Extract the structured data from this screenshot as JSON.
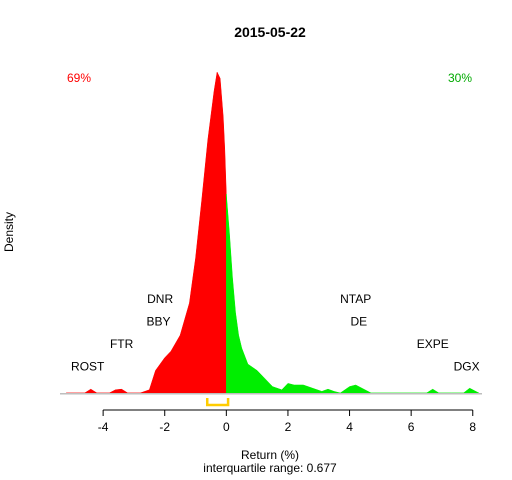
{
  "chart_data": {
    "type": "area",
    "title": "2015-05-22",
    "xlabel": "Return (%)",
    "ylabel": "Density",
    "subtitle": "interquartile range: 0.677",
    "xlim": [
      -5.4,
      8.3
    ],
    "ylim": [
      0,
      1.0
    ],
    "x_ticks": [
      -4,
      -2,
      0,
      2,
      4,
      6,
      8
    ],
    "pct_negative": "69%",
    "pct_positive": "30%",
    "colors": {
      "negative": "#ff0000",
      "positive": "#00ee00",
      "iqr": "#ffcc00",
      "axis": "#000000",
      "baseline": "#bebebe"
    },
    "iqr_range": [
      -0.62,
      0.057
    ],
    "series": [
      {
        "x": [
          -5.2,
          -4.6,
          -4.4,
          -4.2,
          -3.8,
          -3.6,
          -3.4,
          -3.2,
          -2.8,
          -2.5,
          -2.3,
          -2.0,
          -1.8,
          -1.5,
          -1.2,
          -1.0,
          -0.8,
          -0.6,
          -0.4,
          -0.3,
          -0.2,
          -0.1,
          -0.05,
          0.0,
          0.1,
          0.2,
          0.3,
          0.4,
          0.5,
          0.7,
          1.0,
          1.2,
          1.5,
          1.8,
          2.0,
          2.2,
          2.5,
          2.8,
          3.1,
          3.3,
          3.5,
          3.7,
          4.0,
          4.2,
          4.4,
          4.7,
          5.0,
          6.0,
          6.5,
          6.7,
          6.9,
          7.3,
          7.7,
          7.9,
          8.2
        ],
        "density": [
          0.0,
          0.0,
          0.012,
          0.0,
          0.0,
          0.01,
          0.012,
          0.0,
          0.0,
          0.01,
          0.07,
          0.11,
          0.13,
          0.18,
          0.28,
          0.42,
          0.6,
          0.79,
          0.94,
          1.0,
          0.98,
          0.86,
          0.76,
          0.62,
          0.5,
          0.36,
          0.25,
          0.18,
          0.14,
          0.09,
          0.07,
          0.05,
          0.02,
          0.01,
          0.03,
          0.025,
          0.025,
          0.015,
          0.005,
          0.012,
          0.005,
          0.0,
          0.02,
          0.025,
          0.015,
          0.0,
          0.0,
          0.0,
          0.0,
          0.012,
          0.0,
          0.0,
          0.0,
          0.015,
          0.0
        ]
      }
    ],
    "annotations": [
      {
        "label": "ROST",
        "x": -4.5,
        "y": 0.07
      },
      {
        "label": "FTR",
        "x": -3.4,
        "y": 0.14
      },
      {
        "label": "DNR",
        "x": -2.15,
        "y": 0.28
      },
      {
        "label": "BBY",
        "x": -2.2,
        "y": 0.21
      },
      {
        "label": "NTAP",
        "x": 4.2,
        "y": 0.28
      },
      {
        "label": "DE",
        "x": 4.3,
        "y": 0.21
      },
      {
        "label": "EXPE",
        "x": 6.7,
        "y": 0.14
      },
      {
        "label": "DGX",
        "x": 7.8,
        "y": 0.07
      }
    ]
  }
}
